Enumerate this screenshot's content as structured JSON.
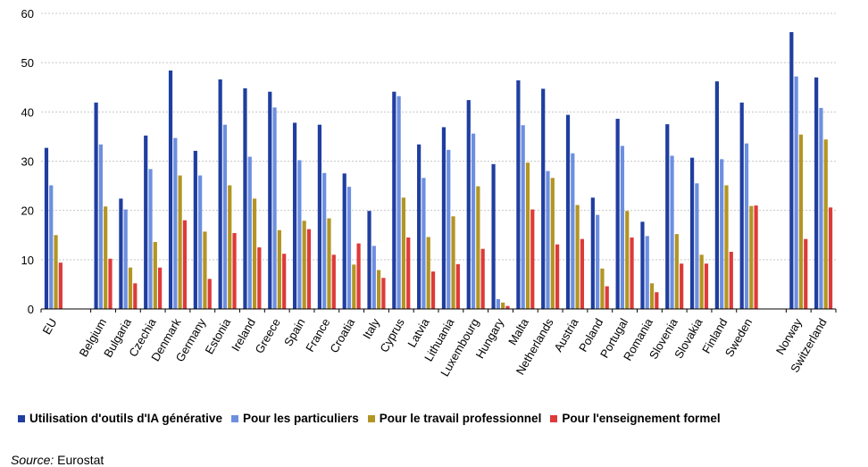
{
  "chart_data": {
    "type": "bar",
    "ylim": [
      0,
      60
    ],
    "yticks": [
      0,
      10,
      20,
      30,
      40,
      50,
      60
    ],
    "grid": true,
    "legend_position": "bottom",
    "categories": [
      "EU",
      "Belgium",
      "Bulgaria",
      "Czechia",
      "Denmark",
      "Germany",
      "Estonia",
      "Ireland",
      "Greece",
      "Spain",
      "France",
      "Croatia",
      "Italy",
      "Cyprus",
      "Latvia",
      "Lithuania",
      "Luxembourg",
      "Hungary",
      "Malta",
      "Netherlands",
      "Austria",
      "Poland",
      "Portugal",
      "Romania",
      "Slovenia",
      "Slovakia",
      "Finland",
      "Sweden",
      "Norway",
      "Switzerland"
    ],
    "series": [
      {
        "name": "Utilisation d'outils d'IA générative",
        "color": "#1f3ea0",
        "values": [
          32.7,
          41.9,
          22.4,
          35.2,
          48.4,
          32.1,
          46.6,
          44.8,
          44.1,
          37.8,
          37.4,
          27.5,
          19.9,
          44.1,
          33.4,
          36.9,
          42.4,
          29.4,
          46.4,
          44.7,
          39.4,
          22.6,
          38.6,
          17.7,
          37.5,
          30.7,
          46.2,
          41.9,
          56.2,
          47.0
        ]
      },
      {
        "name": "Pour les particuliers",
        "color": "#6d8fe0",
        "values": [
          25.1,
          33.4,
          20.2,
          28.4,
          34.7,
          27.1,
          37.4,
          30.9,
          40.9,
          30.2,
          27.6,
          24.8,
          12.8,
          43.2,
          26.6,
          32.3,
          35.6,
          2.0,
          37.3,
          28.0,
          31.6,
          19.1,
          33.1,
          14.8,
          31.1,
          25.5,
          30.4,
          33.6,
          47.2,
          40.8
        ]
      },
      {
        "name": "Pour le travail professionnel",
        "color": "#b39524",
        "values": [
          15.0,
          20.8,
          8.4,
          13.6,
          27.1,
          15.7,
          25.1,
          22.4,
          16.0,
          17.9,
          18.4,
          9.0,
          7.9,
          22.6,
          14.6,
          18.8,
          24.9,
          1.3,
          29.7,
          26.6,
          21.1,
          8.2,
          19.9,
          5.2,
          15.2,
          11.0,
          25.1,
          20.9,
          35.4,
          34.4
        ]
      },
      {
        "name": "Pour l'enseignement formel",
        "color": "#de3a3a",
        "values": [
          9.4,
          10.2,
          5.2,
          8.4,
          18.0,
          6.1,
          15.4,
          12.5,
          11.2,
          16.2,
          11.0,
          13.3,
          6.3,
          14.5,
          7.6,
          9.1,
          12.2,
          0.6,
          20.2,
          13.1,
          14.2,
          4.6,
          14.5,
          3.4,
          9.2,
          9.2,
          11.6,
          21.0,
          14.2,
          20.6
        ]
      }
    ]
  },
  "source": {
    "label": "Source:",
    "text": " Eurostat"
  }
}
